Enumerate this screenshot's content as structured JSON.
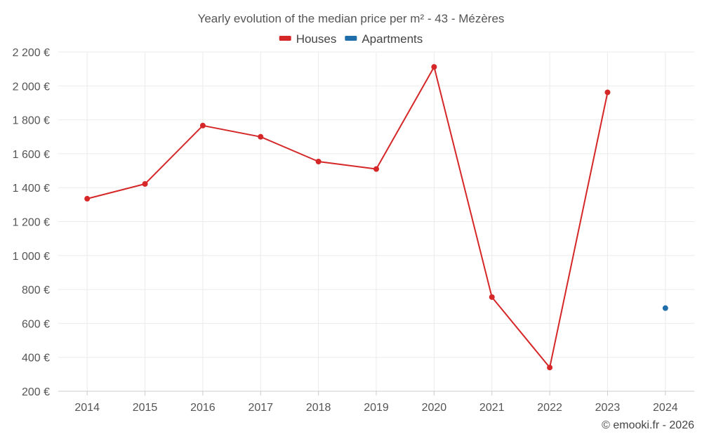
{
  "chart_data": {
    "type": "line",
    "title": "Yearly evolution of the median price per m² - 43 - Mézères",
    "categories": [
      "2014",
      "2015",
      "2016",
      "2017",
      "2018",
      "2019",
      "2020",
      "2021",
      "2022",
      "2023",
      "2024"
    ],
    "series": [
      {
        "name": "Houses",
        "color": "#d62728",
        "values": [
          1335,
          1422,
          1766,
          1700,
          1554,
          1510,
          2112,
          755,
          340,
          1962,
          null
        ]
      },
      {
        "name": "Apartments",
        "color": "#1f6eaa",
        "values": [
          null,
          null,
          null,
          null,
          null,
          null,
          null,
          null,
          null,
          null,
          690
        ]
      }
    ],
    "ylim": [
      200,
      2200
    ],
    "yticks": [
      200,
      400,
      600,
      800,
      1000,
      1200,
      1400,
      1600,
      1800,
      2000,
      2200
    ],
    "ytick_labels": [
      "200 €",
      "400 €",
      "600 €",
      "800 €",
      "1 000 €",
      "1 200 €",
      "1 400 €",
      "1 600 €",
      "1 800 €",
      "2 000 €",
      "2 200 €"
    ],
    "xlabel": "",
    "ylabel": "",
    "grid": true,
    "legend_position": "top-center"
  },
  "credit": "© emooki.fr - 2026"
}
